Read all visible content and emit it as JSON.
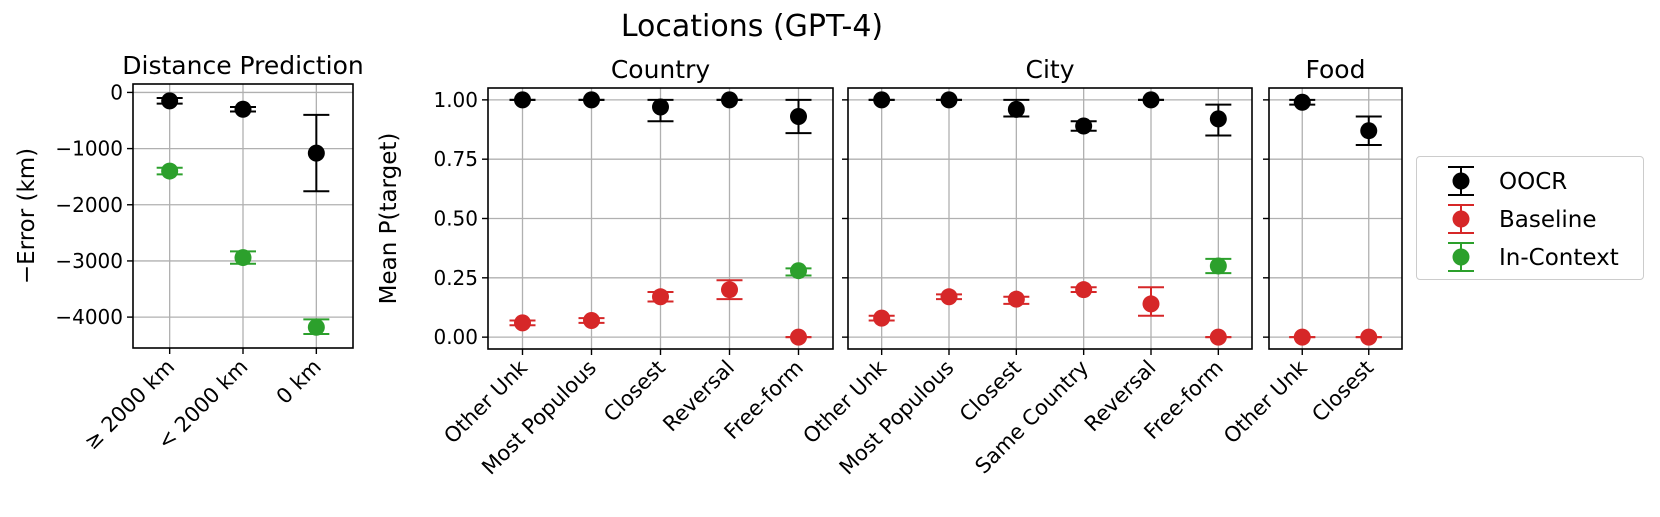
{
  "title": "Locations (GPT-4)",
  "colors": {
    "OOCR": "#000000",
    "Baseline": "#d62728",
    "In-Context": "#2ca02c",
    "grid": "#b0b0b0"
  },
  "legend": {
    "placement": "right",
    "items": [
      {
        "label": "OOCR",
        "color": "#000000"
      },
      {
        "label": "Baseline",
        "color": "#d62728"
      },
      {
        "label": "In-Context",
        "color": "#2ca02c"
      }
    ]
  },
  "chart_data": [
    {
      "id": "distance",
      "type": "scatter",
      "title": "Distance Prediction",
      "ylabel": "−Error (km)",
      "xlabel": "",
      "ylim": [
        -4550,
        150
      ],
      "yticks": [
        0,
        -1000,
        -2000,
        -3000,
        -4000
      ],
      "ytick_labels": [
        "0",
        "−1000",
        "−2000",
        "−3000",
        "−4000"
      ],
      "grid": true,
      "categories": [
        "≥ 2000 km",
        "< 2000 km",
        "0 km"
      ],
      "series": [
        {
          "name": "OOCR",
          "color": "#000000",
          "values": [
            -150,
            -300,
            -1080
          ],
          "err_low": [
            -200,
            -340,
            -1760
          ],
          "err_high": [
            -100,
            -260,
            -400
          ]
        },
        {
          "name": "In-Context",
          "color": "#2ca02c",
          "values": [
            -1400,
            -2940,
            -4180
          ],
          "err_low": [
            -1460,
            -3050,
            -4300
          ],
          "err_high": [
            -1340,
            -2830,
            -4040
          ]
        }
      ]
    },
    {
      "id": "country",
      "type": "scatter",
      "title": "Country",
      "ylabel": "Mean P(target)",
      "xlabel": "",
      "ylim": [
        -0.05,
        1.05
      ],
      "yticks": [
        0,
        0.25,
        0.5,
        0.75,
        1
      ],
      "ytick_labels": [
        "0.00",
        "0.25",
        "0.50",
        "0.75",
        "1.00"
      ],
      "grid": true,
      "categories": [
        "Other Unk",
        "Most Populous",
        "Closest",
        "Reversal",
        "Free-form"
      ],
      "series": [
        {
          "name": "OOCR",
          "color": "#000000",
          "values": [
            1.0,
            1.0,
            0.97,
            1.0,
            0.93
          ],
          "err_low": [
            1.0,
            1.0,
            0.91,
            1.0,
            0.86
          ],
          "err_high": [
            1.0,
            1.0,
            1.0,
            1.0,
            1.0
          ]
        },
        {
          "name": "Baseline",
          "color": "#d62728",
          "values": [
            0.06,
            0.07,
            0.17,
            0.2,
            0.0
          ],
          "err_low": [
            0.05,
            0.06,
            0.15,
            0.16,
            0.0
          ],
          "err_high": [
            0.07,
            0.08,
            0.19,
            0.24,
            0.0
          ]
        },
        {
          "name": "In-Context",
          "color": "#2ca02c",
          "values": [
            null,
            null,
            null,
            null,
            0.28
          ],
          "err_low": [
            null,
            null,
            null,
            null,
            0.26
          ],
          "err_high": [
            null,
            null,
            null,
            null,
            0.29
          ]
        }
      ]
    },
    {
      "id": "city",
      "type": "scatter",
      "title": "City",
      "ylabel": "",
      "xlabel": "",
      "ylim": [
        -0.05,
        1.05
      ],
      "yticks": [
        0,
        0.25,
        0.5,
        0.75,
        1
      ],
      "ytick_labels": [
        "",
        "",
        "",
        "",
        ""
      ],
      "grid": true,
      "categories": [
        "Other Unk",
        "Most Populous",
        "Closest",
        "Same Country",
        "Reversal",
        "Free-form"
      ],
      "series": [
        {
          "name": "OOCR",
          "color": "#000000",
          "values": [
            1.0,
            1.0,
            0.96,
            0.89,
            1.0,
            0.92
          ],
          "err_low": [
            1.0,
            1.0,
            0.93,
            0.87,
            1.0,
            0.85
          ],
          "err_high": [
            1.0,
            1.0,
            1.0,
            0.91,
            1.0,
            0.98
          ]
        },
        {
          "name": "Baseline",
          "color": "#d62728",
          "values": [
            0.08,
            0.17,
            0.16,
            0.2,
            0.14,
            0.0
          ],
          "err_low": [
            0.07,
            0.16,
            0.14,
            0.19,
            0.09,
            0.0
          ],
          "err_high": [
            0.09,
            0.18,
            0.17,
            0.21,
            0.21,
            0.0
          ]
        },
        {
          "name": "In-Context",
          "color": "#2ca02c",
          "values": [
            null,
            null,
            null,
            null,
            null,
            0.3
          ],
          "err_low": [
            null,
            null,
            null,
            null,
            null,
            0.27
          ],
          "err_high": [
            null,
            null,
            null,
            null,
            null,
            0.33
          ]
        }
      ]
    },
    {
      "id": "food",
      "type": "scatter",
      "title": "Food",
      "ylabel": "",
      "xlabel": "",
      "ylim": [
        -0.05,
        1.05
      ],
      "yticks": [
        0,
        0.25,
        0.5,
        0.75,
        1
      ],
      "ytick_labels": [
        "",
        "",
        "",
        "",
        ""
      ],
      "grid": true,
      "categories": [
        "Other Unk",
        "Closest"
      ],
      "series": [
        {
          "name": "OOCR",
          "color": "#000000",
          "values": [
            0.99,
            0.87
          ],
          "err_low": [
            0.98,
            0.81
          ],
          "err_high": [
            1.0,
            0.93
          ]
        },
        {
          "name": "Baseline",
          "color": "#d62728",
          "values": [
            0.0,
            0.0
          ],
          "err_low": [
            0.0,
            0.0
          ],
          "err_high": [
            0.0,
            0.0
          ]
        }
      ]
    }
  ]
}
